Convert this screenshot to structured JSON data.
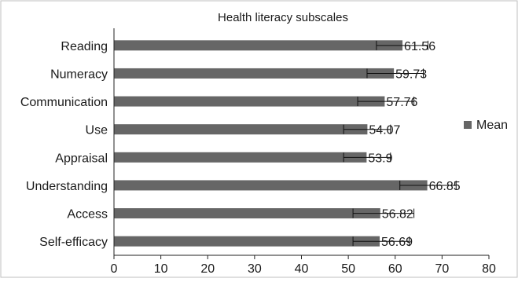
{
  "chart_data": {
    "type": "bar",
    "orientation": "horizontal",
    "title": "Health literacy subscales",
    "xlabel": "",
    "ylabel": "",
    "categories": [
      "Reading",
      "Numeracy",
      "Communication",
      "Use",
      "Appraisal",
      "Understanding",
      "Access",
      "Self-efficacy"
    ],
    "series": [
      {
        "name": "Mean",
        "values": [
          61.56,
          59.73,
          57.76,
          54.07,
          53.9,
          66.85,
          56.82,
          56.69
        ],
        "value_labels": [
          "61.56",
          "59.73",
          "57.76",
          "54.07",
          "53.9",
          "66.85",
          "56.82",
          "56.69"
        ],
        "error_low": [
          56,
          54,
          52,
          49,
          49,
          61,
          51,
          51
        ],
        "error_high": [
          67,
          66,
          64,
          59,
          59,
          73,
          64,
          63
        ],
        "color": "#666666"
      }
    ],
    "xlim": [
      0,
      80
    ],
    "xticks": [
      "0",
      "10",
      "20",
      "30",
      "40",
      "50",
      "60",
      "70",
      "80"
    ],
    "grid": false,
    "legend": {
      "position": "right",
      "entries": [
        "Mean"
      ]
    }
  }
}
